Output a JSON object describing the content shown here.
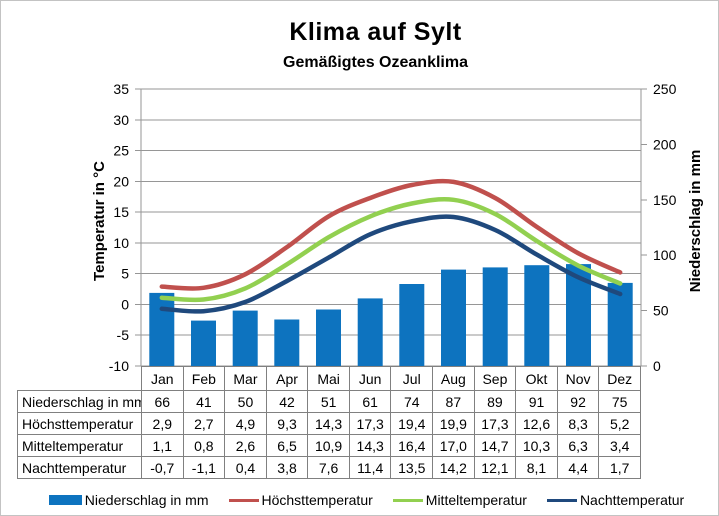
{
  "title": "Klima auf Sylt",
  "subtitle": "Gemäßigtes Ozeanklima",
  "chart_data": {
    "type": "combo-bar-line",
    "title": "Klima auf Sylt",
    "subtitle": "Gemäßigtes Ozeanklima",
    "categories": [
      "Jan",
      "Feb",
      "Mar",
      "Apr",
      "Mai",
      "Jun",
      "Jul",
      "Aug",
      "Sep",
      "Okt",
      "Nov",
      "Dez"
    ],
    "bar_series": {
      "name": "Niederschlag in mm",
      "axis": "right",
      "color": "#0d73bf",
      "values": [
        66,
        41,
        50,
        42,
        51,
        61,
        74,
        87,
        89,
        91,
        92,
        75
      ]
    },
    "line_series": [
      {
        "name": "Höchsttemperatur",
        "color": "#c0504d",
        "values": [
          2.9,
          2.7,
          4.9,
          9.3,
          14.3,
          17.3,
          19.4,
          19.9,
          17.3,
          12.6,
          8.3,
          5.2
        ]
      },
      {
        "name": "Mitteltemperatur",
        "color": "#92d050",
        "values": [
          1.1,
          0.8,
          2.6,
          6.5,
          10.9,
          14.3,
          16.4,
          17.0,
          14.7,
          10.3,
          6.3,
          3.4
        ]
      },
      {
        "name": "Nachttemperatur",
        "color": "#1f497d",
        "values": [
          -0.7,
          -1.1,
          0.4,
          3.8,
          7.6,
          11.4,
          13.5,
          14.2,
          12.1,
          8.1,
          4.4,
          1.7
        ]
      }
    ],
    "left_axis": {
      "label": "Temperatur in °C",
      "min": -10,
      "max": 35,
      "step": 5,
      "ticks": [
        "35",
        "30",
        "25",
        "20",
        "15",
        "10",
        "5",
        "0",
        "-5",
        "-10"
      ]
    },
    "right_axis": {
      "label": "Niederschlag in mm",
      "min": 0,
      "max": 250,
      "step": 50,
      "ticks": [
        "250",
        "200",
        "150",
        "100",
        "50",
        "0"
      ]
    },
    "grid": true,
    "legend_position": "bottom",
    "grid_color": "#969696"
  },
  "table": {
    "rows": [
      {
        "label": "Niederschlag in mm",
        "values": [
          "66",
          "41",
          "50",
          "42",
          "51",
          "61",
          "74",
          "87",
          "89",
          "91",
          "92",
          "75"
        ]
      },
      {
        "label": "Höchsttemperatur",
        "values": [
          "2,9",
          "2,7",
          "4,9",
          "9,3",
          "14,3",
          "17,3",
          "19,4",
          "19,9",
          "17,3",
          "12,6",
          "8,3",
          "5,2"
        ]
      },
      {
        "label": "Mitteltemperatur",
        "values": [
          "1,1",
          "0,8",
          "2,6",
          "6,5",
          "10,9",
          "14,3",
          "16,4",
          "17,0",
          "14,7",
          "10,3",
          "6,3",
          "3,4"
        ]
      },
      {
        "label": "Nachttemperatur",
        "values": [
          "-0,7",
          "-1,1",
          "0,4",
          "3,8",
          "7,6",
          "11,4",
          "13,5",
          "14,2",
          "12,1",
          "8,1",
          "4,4",
          "1,7"
        ]
      }
    ]
  }
}
